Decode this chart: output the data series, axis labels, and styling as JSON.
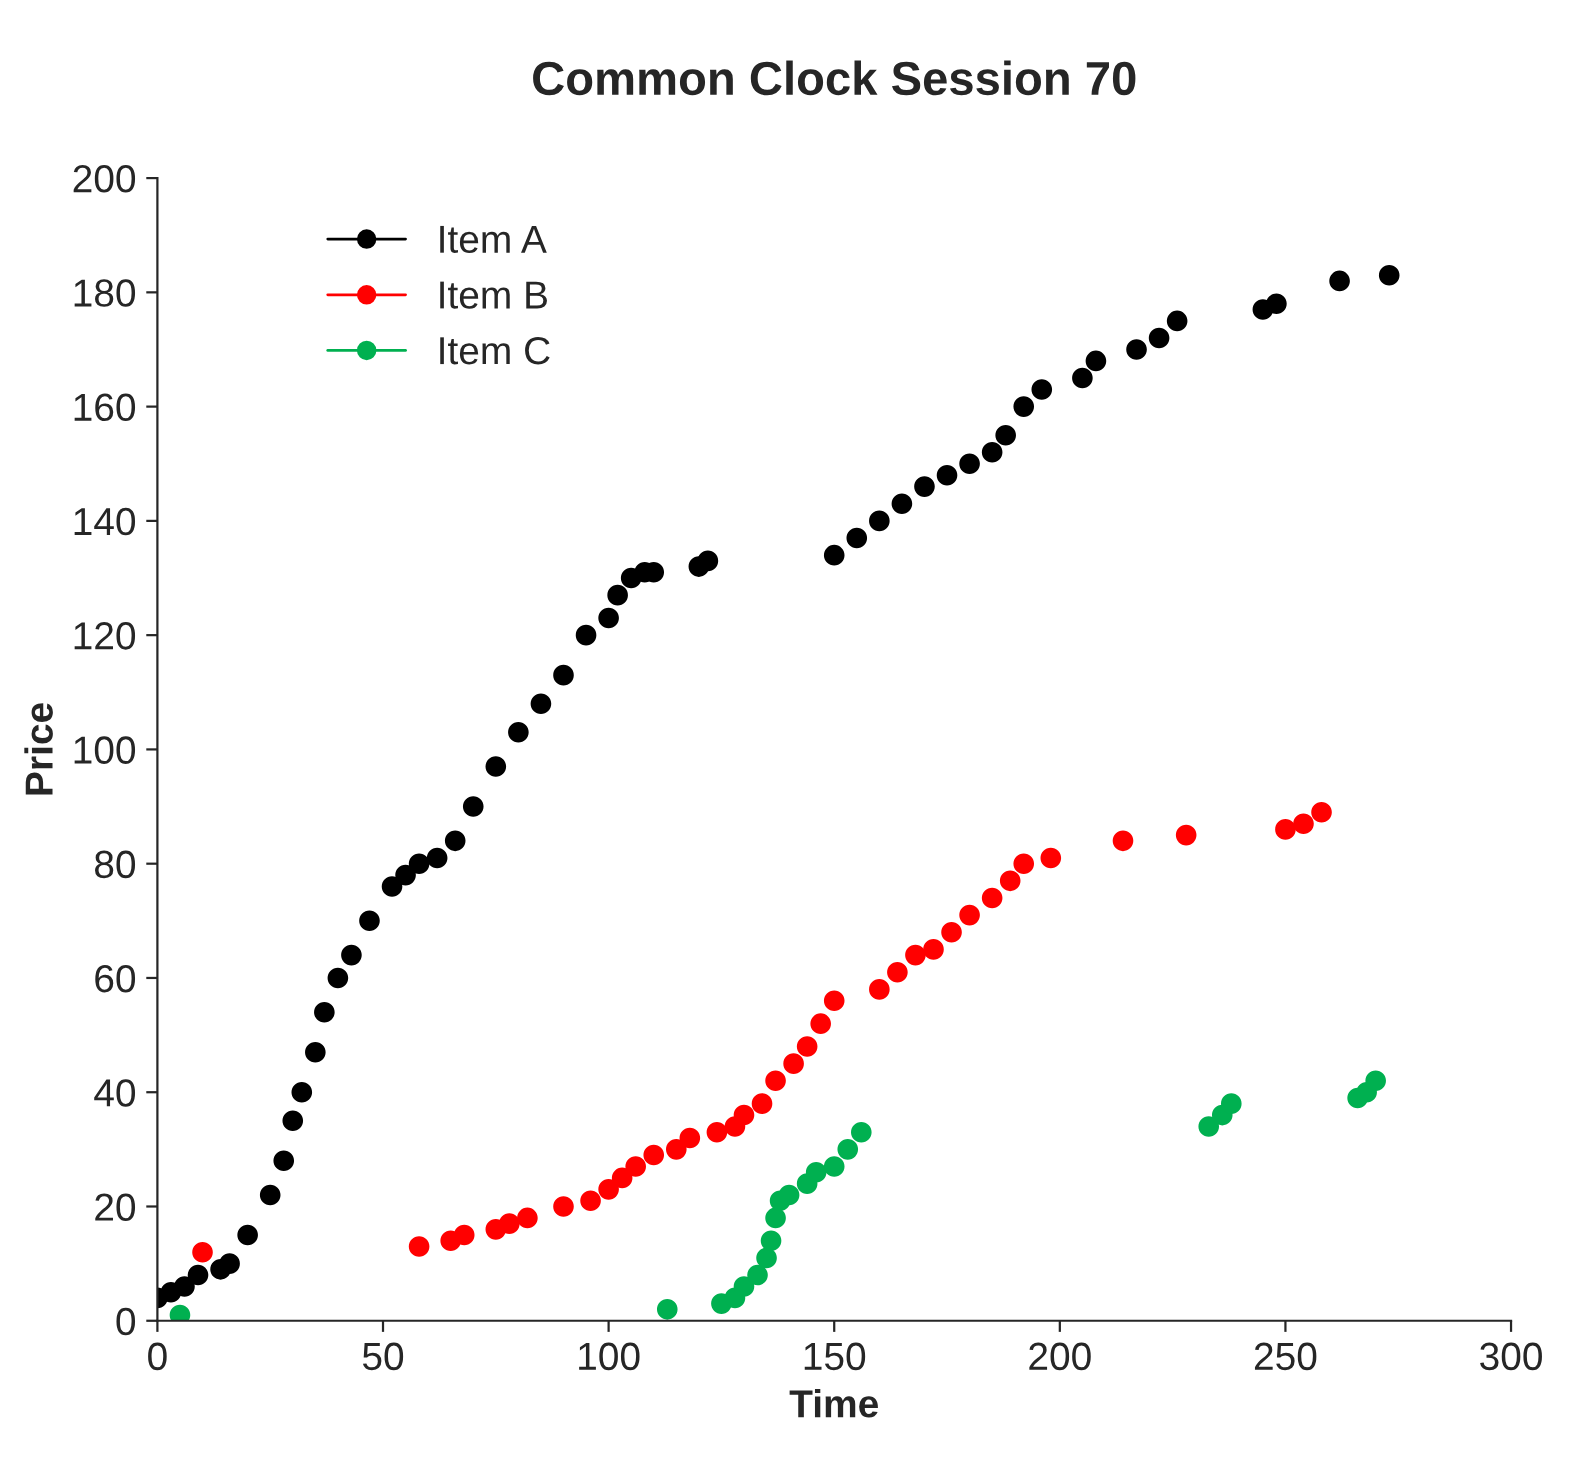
{
  "chart_data": {
    "type": "scatter",
    "title": "Common Clock Session 70",
    "xlabel": "Time",
    "ylabel": "Price",
    "xlim": [
      0,
      300
    ],
    "xticks": [
      0,
      50,
      100,
      150,
      200,
      250,
      300
    ],
    "ylim": [
      0,
      200
    ],
    "yticks": [
      0,
      20,
      40,
      60,
      80,
      100,
      120,
      140,
      160,
      180,
      200
    ],
    "grid": false,
    "legend": "top left",
    "marker": "circle",
    "series": [
      {
        "name": "Item A",
        "color": "#000000",
        "x": [
          0,
          3,
          6,
          9,
          14,
          16,
          20,
          25,
          28,
          30,
          32,
          35,
          37,
          40,
          43,
          47,
          52,
          55,
          58,
          62,
          66,
          70,
          75,
          80,
          85,
          90,
          95,
          100,
          102,
          105,
          108,
          110,
          120,
          122,
          150,
          155,
          160,
          165,
          170,
          175,
          180,
          185,
          188,
          192,
          196,
          205,
          208,
          217,
          222,
          226,
          245,
          248,
          262,
          273
        ],
        "values": [
          4,
          5,
          6,
          8,
          9,
          10,
          15,
          22,
          28,
          35,
          40,
          47,
          54,
          60,
          64,
          70,
          76,
          78,
          80,
          81,
          84,
          90,
          97,
          103,
          108,
          113,
          120,
          123,
          127,
          130,
          131,
          131,
          132,
          133,
          134,
          137,
          140,
          143,
          146,
          148,
          150,
          152,
          155,
          160,
          163,
          165,
          168,
          170,
          172,
          175,
          177,
          178,
          182,
          183
        ]
      },
      {
        "name": "Item B",
        "color": "#ff0000",
        "x": [
          10,
          58,
          65,
          68,
          75,
          78,
          82,
          90,
          96,
          100,
          103,
          106,
          110,
          115,
          118,
          124,
          128,
          130,
          134,
          137,
          141,
          144,
          147,
          150,
          160,
          164,
          168,
          172,
          176,
          180,
          185,
          189,
          192,
          198,
          214,
          228,
          250,
          254,
          258
        ],
        "values": [
          12,
          13,
          14,
          15,
          16,
          17,
          18,
          20,
          21,
          23,
          25,
          27,
          29,
          30,
          32,
          33,
          34,
          36,
          38,
          42,
          45,
          48,
          52,
          56,
          58,
          61,
          64,
          65,
          68,
          71,
          74,
          77,
          80,
          81,
          84,
          85,
          86,
          87,
          89
        ]
      },
      {
        "name": "Item C",
        "color": "#00b050",
        "x": [
          5,
          113,
          125,
          128,
          130,
          133,
          135,
          136,
          137,
          138,
          140,
          144,
          146,
          150,
          153,
          156,
          233,
          236,
          238,
          266,
          268,
          270
        ],
        "values": [
          1,
          2,
          3,
          4,
          6,
          8,
          11,
          14,
          18,
          21,
          22,
          24,
          26,
          27,
          30,
          33,
          34,
          36,
          38,
          39,
          40,
          42
        ]
      }
    ]
  }
}
